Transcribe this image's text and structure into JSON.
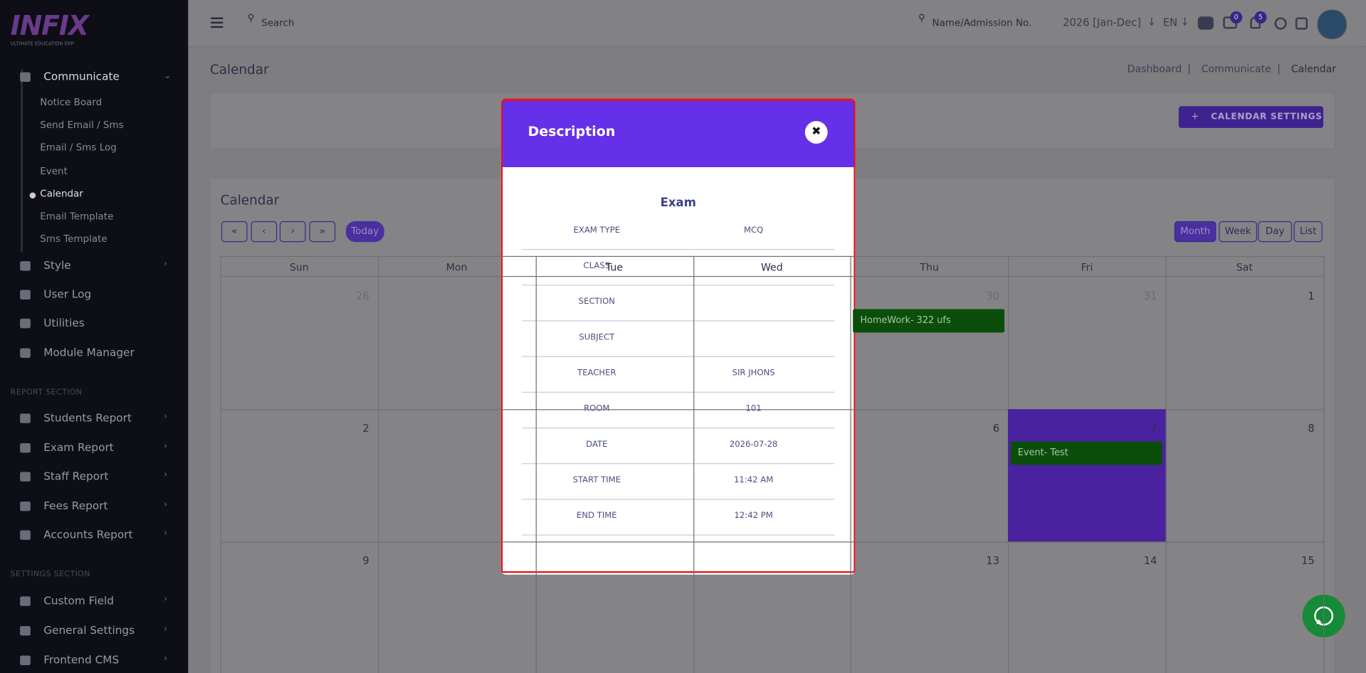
{
  "sidebar": {
    "logo": "INFIX",
    "logo_tagline": "ULTIMATE EDUCATION ERP",
    "communicate": {
      "label": "Communicate",
      "items": [
        "Notice Board",
        "Send Email / Sms",
        "Email / Sms Log",
        "Event",
        "Calendar",
        "Email Template",
        "Sms Template"
      ]
    },
    "menu": [
      "Style",
      "User Log",
      "Utilities",
      "Module Manager"
    ],
    "report_section": {
      "heading": "REPORT SECTION",
      "items": [
        "Students Report",
        "Exam Report",
        "Staff Report",
        "Fees Report",
        "Accounts Report"
      ]
    },
    "settings_section": {
      "heading": "SETTINGS SECTION",
      "items": [
        "Custom Field",
        "General Settings",
        "Frontend CMS"
      ]
    }
  },
  "topbar": {
    "search": "Search",
    "student_search": "Name/Admission No.",
    "session": "2026 [Jan-Dec]",
    "language": "EN",
    "message_count": 0,
    "notification_count": 5
  },
  "page": {
    "title": "Calendar",
    "breadcrumb": [
      "Dashboard",
      "Communicate",
      "Calendar"
    ],
    "settings_button": "CALENDAR SETTINGS"
  },
  "calendar": {
    "title": "Calendar",
    "today": "Today",
    "views": [
      "Month",
      "Week",
      "Day",
      "List"
    ],
    "weekdays": [
      "Sun",
      "Mon",
      "Tue",
      "Wed",
      "Thu",
      "Fri",
      "Sat"
    ],
    "weeks": [
      [
        {
          "date": 26,
          "other_month": true
        },
        null,
        null,
        null,
        {
          "date": 30,
          "other_month": true,
          "events": [
            "HomeWork- 322 ufs"
          ]
        },
        {
          "date": 31,
          "other_month": true
        },
        {
          "date": 1
        }
      ],
      [
        {
          "date": 2
        },
        null,
        null,
        null,
        {
          "date": 6
        },
        {
          "date": 7,
          "today": true,
          "events": [
            "Event- Test"
          ]
        },
        {
          "date": 8
        }
      ],
      [
        {
          "date": 9
        },
        null,
        null,
        null,
        {
          "date": 13
        },
        {
          "date": 14
        },
        {
          "date": 15
        }
      ]
    ]
  },
  "modal": {
    "title": "Description",
    "event_title": "Exam",
    "rows": [
      {
        "label": "EXAM TYPE",
        "value": "MCQ"
      },
      {
        "label": "CLASS",
        "value": null
      },
      {
        "label": "SECTION",
        "value": null
      },
      {
        "label": "SUBJECT",
        "value": null
      },
      {
        "label": "TEACHER",
        "value": "SIR JHONS"
      },
      {
        "label": "ROOM",
        "value": "101"
      },
      {
        "label": "DATE",
        "value": "2026-07-28"
      },
      {
        "label": "START TIME",
        "value": "11:42 AM"
      },
      {
        "label": "END TIME",
        "value": "12:42 PM"
      }
    ]
  }
}
